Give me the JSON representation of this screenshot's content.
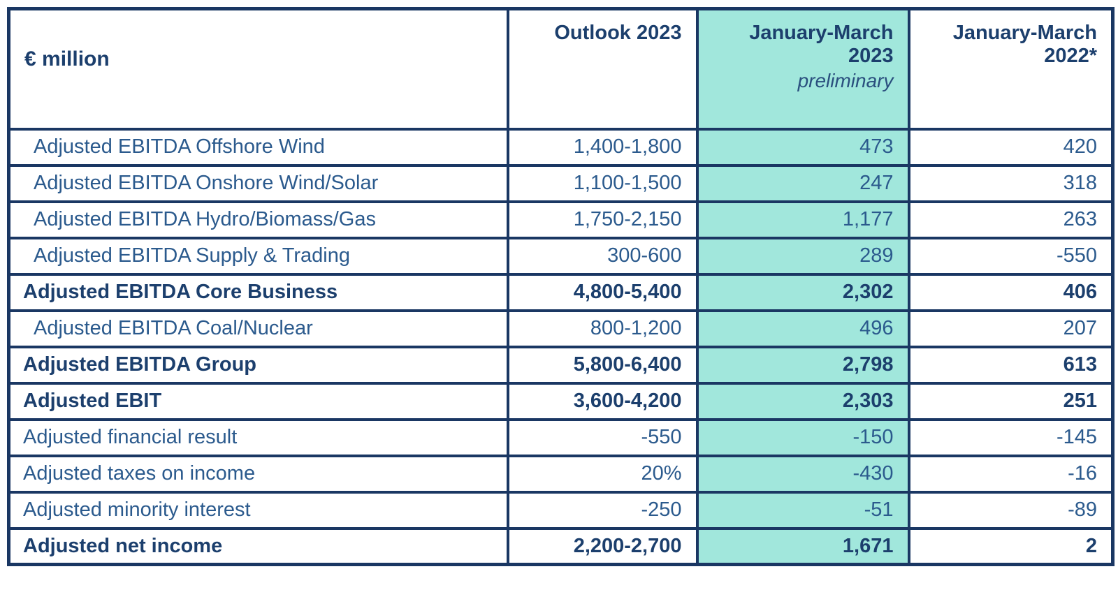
{
  "colors": {
    "border_navy": "#1a3763",
    "highlight_teal": "#a1e7dc",
    "bold_text_navy": "#1c3f6d",
    "regular_text_blue": "#2b5a8d"
  },
  "table": {
    "unit_label": "€ million",
    "col_headers": {
      "outlook": "Outlook 2023",
      "jan_mar_2023": "January-March 2023",
      "jan_mar_2023_note": "preliminary",
      "jan_mar_2022": "January-March 2022*"
    },
    "rows": [
      {
        "label": "Adjusted EBITDA Offshore Wind",
        "outlook": "1,400-1,800",
        "jan_mar_2023": "473",
        "jan_mar_2022": "420",
        "bold": false,
        "indent": true
      },
      {
        "label": "Adjusted EBITDA Onshore Wind/Solar",
        "outlook": "1,100-1,500",
        "jan_mar_2023": "247",
        "jan_mar_2022": "318",
        "bold": false,
        "indent": true
      },
      {
        "label": "Adjusted EBITDA Hydro/Biomass/Gas",
        "outlook": "1,750-2,150",
        "jan_mar_2023": "1,177",
        "jan_mar_2022": "263",
        "bold": false,
        "indent": true
      },
      {
        "label": "Adjusted EBITDA Supply & Trading",
        "outlook": "300-600",
        "jan_mar_2023": "289",
        "jan_mar_2022": "-550",
        "bold": false,
        "indent": true
      },
      {
        "label": "Adjusted EBITDA Core Business",
        "outlook": "4,800-5,400",
        "jan_mar_2023": "2,302",
        "jan_mar_2022": "406",
        "bold": true,
        "indent": false
      },
      {
        "label": "Adjusted EBITDA Coal/Nuclear",
        "outlook": "800-1,200",
        "jan_mar_2023": "496",
        "jan_mar_2022": "207",
        "bold": false,
        "indent": true
      },
      {
        "label": "Adjusted EBITDA Group",
        "outlook": "5,800-6,400",
        "jan_mar_2023": "2,798",
        "jan_mar_2022": "613",
        "bold": true,
        "indent": false
      },
      {
        "label": "Adjusted EBIT",
        "outlook": "3,600-4,200",
        "jan_mar_2023": "2,303",
        "jan_mar_2022": "251",
        "bold": true,
        "indent": false
      },
      {
        "label": "Adjusted financial result",
        "outlook": "-550",
        "jan_mar_2023": "-150",
        "jan_mar_2022": "-145",
        "bold": false,
        "indent": false
      },
      {
        "label": "Adjusted taxes on income",
        "outlook": "20%",
        "jan_mar_2023": "-430",
        "jan_mar_2022": "-16",
        "bold": false,
        "indent": false
      },
      {
        "label": "Adjusted minority interest",
        "outlook": "-250",
        "jan_mar_2023": "-51",
        "jan_mar_2022": "-89",
        "bold": false,
        "indent": false
      },
      {
        "label": "Adjusted net income",
        "outlook": "2,200-2,700",
        "jan_mar_2023": "1,671",
        "jan_mar_2022": "2",
        "bold": true,
        "indent": false
      }
    ]
  }
}
